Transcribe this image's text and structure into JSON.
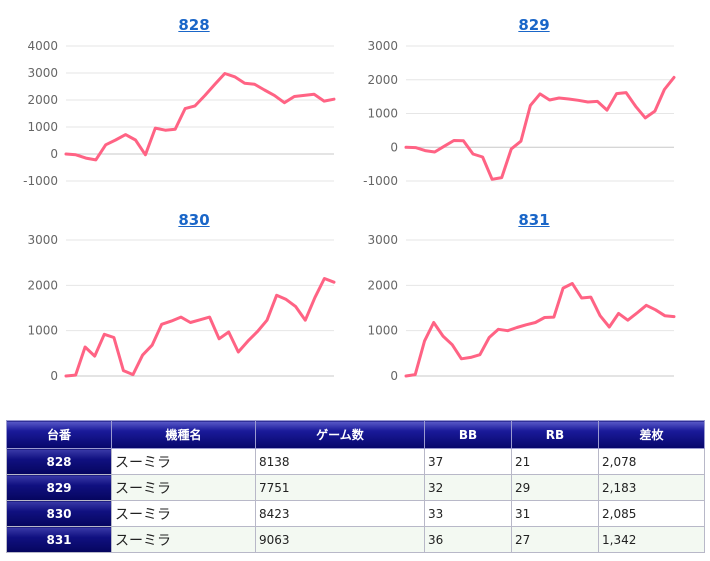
{
  "chart_data": [
    {
      "type": "line",
      "title": "828",
      "ylim": [
        -1000,
        4000
      ],
      "yticks": [
        -1000,
        0,
        1000,
        2000,
        3000,
        4000
      ],
      "grid": true,
      "series_color": "#ff6384",
      "values": [
        0,
        -30,
        -150,
        -220,
        340,
        520,
        720,
        520,
        -30,
        960,
        880,
        920,
        1680,
        1780,
        2170,
        2580,
        2980,
        2860,
        2620,
        2580,
        2370,
        2170,
        1900,
        2130,
        2170,
        2210,
        1960,
        2030
      ]
    },
    {
      "type": "line",
      "title": "829",
      "ylim": [
        -1000,
        3000
      ],
      "yticks": [
        -1000,
        0,
        1000,
        2000,
        3000
      ],
      "grid": true,
      "series_color": "#ff6384",
      "values": [
        0,
        -10,
        -100,
        -140,
        30,
        200,
        190,
        -200,
        -290,
        -950,
        -900,
        -50,
        180,
        1240,
        1580,
        1400,
        1460,
        1430,
        1390,
        1340,
        1360,
        1100,
        1590,
        1620,
        1210,
        870,
        1070,
        1710,
        2070
      ]
    },
    {
      "type": "line",
      "title": "830",
      "ylim": [
        0,
        3000
      ],
      "yticks": [
        0,
        1000,
        2000,
        3000
      ],
      "grid": true,
      "series_color": "#ff6384",
      "values": [
        0,
        20,
        640,
        440,
        920,
        850,
        120,
        30,
        460,
        680,
        1140,
        1210,
        1300,
        1180,
        1240,
        1300,
        820,
        970,
        530,
        770,
        980,
        1230,
        1780,
        1690,
        1530,
        1230,
        1730,
        2150,
        2070
      ]
    },
    {
      "type": "line",
      "title": "831",
      "ylim": [
        0,
        3000
      ],
      "yticks": [
        0,
        1000,
        2000,
        3000
      ],
      "grid": true,
      "series_color": "#ff6384",
      "values": [
        0,
        30,
        770,
        1180,
        880,
        690,
        380,
        410,
        470,
        850,
        1030,
        1000,
        1070,
        1130,
        1180,
        1290,
        1300,
        1940,
        2040,
        1720,
        1740,
        1330,
        1080,
        1380,
        1230,
        1390,
        1560,
        1460,
        1330,
        1310
      ]
    }
  ],
  "table": {
    "headers": [
      "台番",
      "機種名",
      "ゲーム数",
      "BB",
      "RB",
      "差枚"
    ],
    "rows": [
      [
        "828",
        "スーミラ",
        "8138",
        "37",
        "21",
        "2,078"
      ],
      [
        "829",
        "スーミラ",
        "7751",
        "32",
        "29",
        "2,183"
      ],
      [
        "830",
        "スーミラ",
        "8423",
        "33",
        "31",
        "2,085"
      ],
      [
        "831",
        "スーミラ",
        "9063",
        "36",
        "27",
        "1,342"
      ]
    ]
  }
}
